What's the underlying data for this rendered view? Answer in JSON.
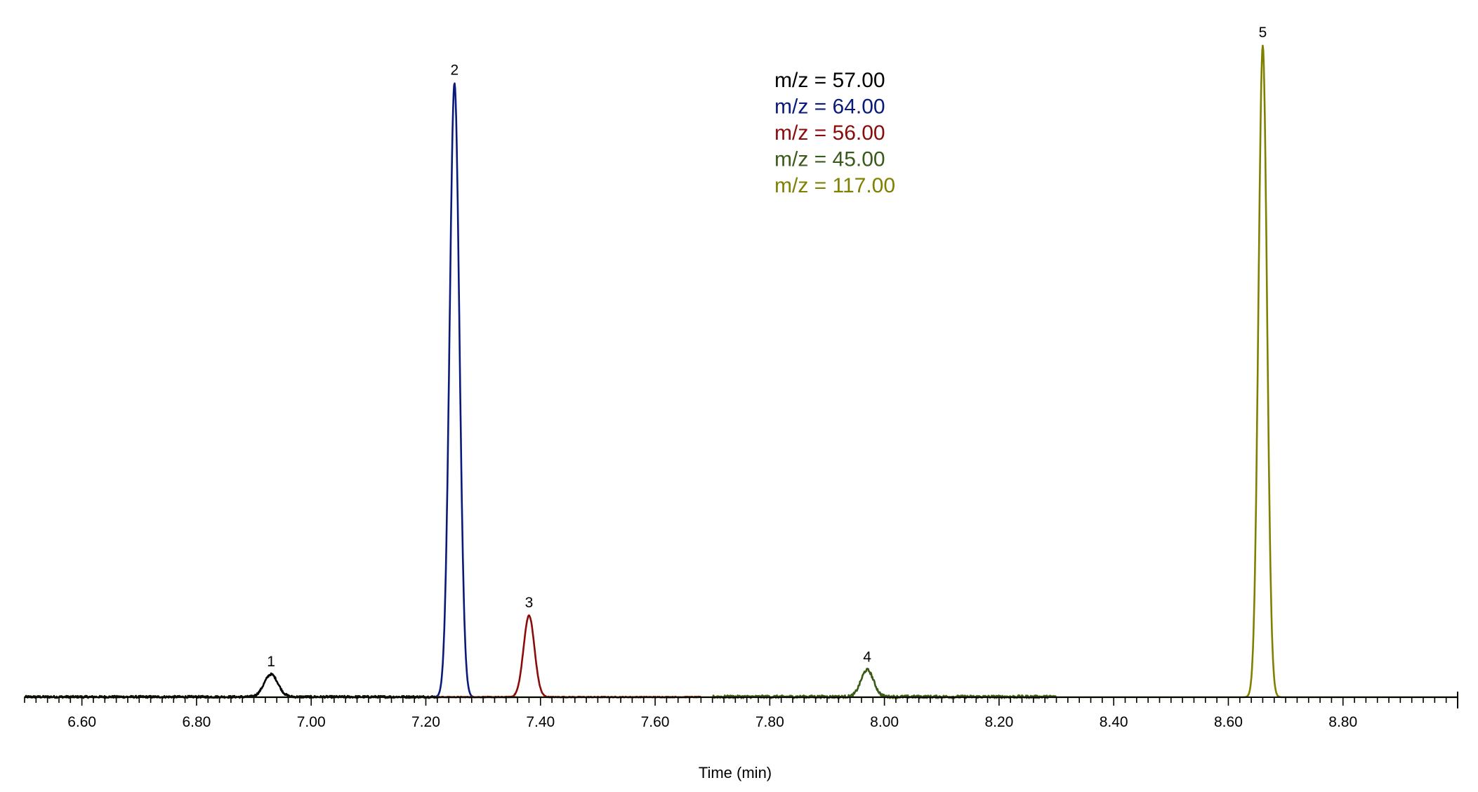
{
  "chart_data": {
    "type": "line",
    "title": "",
    "xlabel": "Time (min)",
    "ylabel": "",
    "xlim": [
      6.5,
      9.0
    ],
    "ylim": [
      0,
      105
    ],
    "x_ticks": [
      "6.60",
      "6.80",
      "7.00",
      "7.20",
      "7.40",
      "7.60",
      "7.80",
      "8.00",
      "8.20",
      "8.40",
      "8.60",
      "8.80"
    ],
    "grid": false,
    "legend_position": "top-center",
    "series": [
      {
        "name": "m/z = 57.00",
        "color": "#000000",
        "range": [
          6.5,
          7.22
        ],
        "noise": 0.35,
        "peaks": [
          {
            "label": "1",
            "x": 6.93,
            "height": 3.6,
            "width": 0.012
          }
        ]
      },
      {
        "name": "m/z = 64.00",
        "color": "#0a1a7a",
        "range": [
          7.18,
          7.36
        ],
        "noise": 0.0,
        "peaks": [
          {
            "label": "2",
            "x": 7.25,
            "height": 98.0,
            "width": 0.0085
          }
        ]
      },
      {
        "name": "m/z = 56.00",
        "color": "#8b0a0a",
        "range": [
          7.22,
          7.68
        ],
        "noise": 0.15,
        "peaks": [
          {
            "label": "3",
            "x": 7.38,
            "height": 13.0,
            "width": 0.0095
          }
        ]
      },
      {
        "name": "m/z = 45.00",
        "color": "#3a5a1a",
        "range": [
          7.7,
          8.3
        ],
        "noise": 0.45,
        "peaks": [
          {
            "label": "4",
            "x": 7.97,
            "height": 4.3,
            "width": 0.011
          }
        ]
      },
      {
        "name": "m/z = 117.00",
        "color": "#808000",
        "range": [
          6.5,
          9.0
        ],
        "noise": 0.0,
        "peaks": [
          {
            "label": "5",
            "x": 8.66,
            "height": 104.0,
            "width": 0.0075
          }
        ]
      }
    ]
  }
}
